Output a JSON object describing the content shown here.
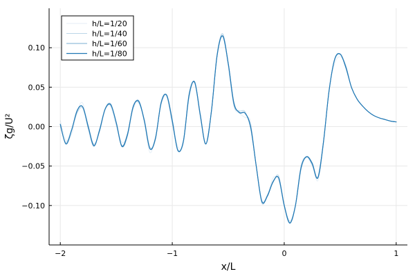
{
  "chart_data": {
    "type": "line",
    "title": "",
    "xlabel": "x/L",
    "ylabel": "ζg/U²",
    "xlim": [
      -2.1,
      1.1
    ],
    "ylim": [
      -0.15,
      0.15
    ],
    "x_ticks": [
      -2,
      -1,
      0,
      1
    ],
    "x_tick_labels": [
      "−2",
      "−1",
      "0",
      "1"
    ],
    "y_ticks": [
      -0.1,
      -0.05,
      0.0,
      0.05,
      0.1
    ],
    "y_tick_labels": [
      "−0.10",
      "−0.05",
      "0.00",
      "0.05",
      "0.10"
    ],
    "grid": true,
    "legend_position": "top-left",
    "series": [
      {
        "name": "h/L=1/20",
        "color": "#1f77b4",
        "opacity": 0.12,
        "stroke_width": 1.0
      },
      {
        "name": "h/L=1/40",
        "color": "#1f77b4",
        "opacity": 0.3,
        "stroke_width": 1.0
      },
      {
        "name": "h/L=1/60",
        "color": "#1f77b4",
        "opacity": 0.6,
        "stroke_width": 1.0
      },
      {
        "name": "h/L=1/80",
        "color": "#1f77b4",
        "opacity": 1.0,
        "stroke_width": 1.2
      }
    ],
    "x": [
      -2.0,
      -1.95,
      -1.9,
      -1.85,
      -1.8,
      -1.75,
      -1.7,
      -1.65,
      -1.6,
      -1.55,
      -1.5,
      -1.45,
      -1.4,
      -1.35,
      -1.3,
      -1.25,
      -1.2,
      -1.15,
      -1.1,
      -1.05,
      -1.0,
      -0.95,
      -0.9,
      -0.85,
      -0.8,
      -0.75,
      -0.7,
      -0.65,
      -0.6,
      -0.55,
      -0.5,
      -0.45,
      -0.4,
      -0.35,
      -0.3,
      -0.25,
      -0.2,
      -0.15,
      -0.1,
      -0.05,
      0.0,
      0.05,
      0.1,
      0.15,
      0.2,
      0.25,
      0.3,
      0.35,
      0.4,
      0.45,
      0.5,
      0.55,
      0.6,
      0.65,
      0.7,
      0.75,
      0.8,
      0.85,
      0.9,
      0.95,
      1.0
    ],
    "y_reference": [
      0.003,
      -0.022,
      -0.005,
      0.02,
      0.025,
      0.0,
      -0.024,
      -0.005,
      0.022,
      0.028,
      0.005,
      -0.025,
      -0.01,
      0.025,
      0.032,
      0.008,
      -0.028,
      -0.015,
      0.03,
      0.04,
      0.008,
      -0.03,
      -0.018,
      0.04,
      0.056,
      0.015,
      -0.022,
      0.02,
      0.09,
      0.115,
      0.08,
      0.03,
      0.018,
      0.017,
      0.0,
      -0.05,
      -0.095,
      -0.088,
      -0.07,
      -0.065,
      -0.1,
      -0.122,
      -0.1,
      -0.052,
      -0.038,
      -0.047,
      -0.065,
      -0.02,
      0.045,
      0.085,
      0.092,
      0.075,
      0.05,
      0.035,
      0.026,
      0.019,
      0.014,
      0.011,
      0.009,
      0.007,
      0.006
    ]
  }
}
